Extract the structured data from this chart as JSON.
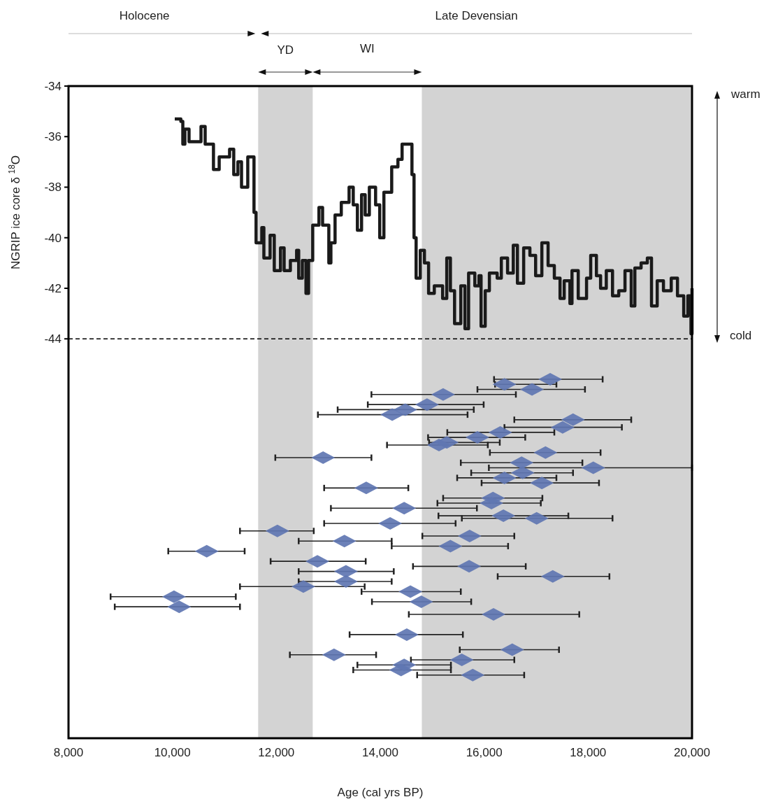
{
  "chart_data": {
    "type": "scatter",
    "xlabel": "Age (cal yrs BP)",
    "ylabel": "NGRIP ice core δ $^{18}$O",
    "annotations": [
      "Holocene",
      "Late Devensian",
      "YD",
      "WI",
      "warm",
      "cold"
    ],
    "xlim": [
      8000,
      20000
    ],
    "ylim": [
      -59.8,
      -34
    ],
    "xticks": [
      {
        "value": 8000,
        "label": "8,000"
      },
      {
        "value": 10000,
        "label": "10,000"
      },
      {
        "value": 12000,
        "label": "12,000"
      },
      {
        "value": 14000,
        "label": "14,000"
      },
      {
        "value": 16000,
        "label": "16,000"
      },
      {
        "value": 18000,
        "label": "18,000"
      },
      {
        "value": 20000,
        "label": "20,000"
      }
    ],
    "yticks": [
      -34,
      -36,
      -38,
      -40,
      -42,
      -44
    ],
    "bands": [
      {
        "axis": "x",
        "from": 11650,
        "to": 12700,
        "color": "#d3d3d3"
      },
      {
        "axis": "x",
        "from": 14800,
        "to": 20000,
        "color": "#d3d3d3"
      }
    ],
    "ref_lines": [
      {
        "axis": "y",
        "value": -44,
        "line_style": "dashed",
        "color": "#000000"
      }
    ],
    "series": [
      {
        "type": "step",
        "color": "#1a1a1a",
        "line_style": "solid",
        "x": [
          10045,
          10162,
          10200,
          10240,
          10320,
          10475,
          10550,
          10630,
          10710,
          10790,
          10900,
          11100,
          11180,
          11260,
          11330,
          11450,
          11530,
          11570,
          11610,
          11720,
          11760,
          11880,
          11960,
          12080,
          12150,
          12270,
          12390,
          12430,
          12500,
          12570,
          12620,
          12700,
          12820,
          12890,
          13010,
          13050,
          13130,
          13250,
          13400,
          13480,
          13560,
          13640,
          13710,
          13790,
          13910,
          13990,
          14070,
          14220,
          14340,
          14420,
          14530,
          14610,
          14650,
          14690,
          14770,
          14850,
          14930,
          15040,
          15200,
          15280,
          15350,
          15430,
          15550,
          15630,
          15700,
          15820,
          15900,
          15940,
          16020,
          16100,
          16250,
          16330,
          16450,
          16560,
          16640,
          16760,
          16880,
          16990,
          17110,
          17230,
          17350,
          17460,
          17540,
          17650,
          17690,
          17810,
          17970,
          18050,
          18160,
          18240,
          18350,
          18470,
          18590,
          18710,
          18830,
          18900,
          19020,
          19140,
          19220,
          19330,
          19450,
          19600,
          19720,
          19840,
          19920,
          19980,
          20000
        ],
        "values": [
          -35.3,
          -35.4,
          -36.3,
          -35.7,
          -36.2,
          -36.2,
          -35.6,
          -36.3,
          -36.3,
          -37.3,
          -36.8,
          -36.5,
          -37.5,
          -37.0,
          -38.0,
          -36.8,
          -36.8,
          -39.0,
          -40.2,
          -39.6,
          -40.8,
          -39.9,
          -41.3,
          -40.4,
          -41.3,
          -40.9,
          -40.5,
          -41.6,
          -40.9,
          -42.2,
          -40.9,
          -39.5,
          -38.8,
          -39.5,
          -41.0,
          -40.2,
          -39.1,
          -38.6,
          -38.0,
          -38.7,
          -39.7,
          -38.3,
          -39.1,
          -38.0,
          -38.7,
          -40.0,
          -38.2,
          -37.2,
          -36.9,
          -36.3,
          -36.3,
          -37.5,
          -40.0,
          -41.6,
          -40.5,
          -41.0,
          -42.2,
          -41.9,
          -42.4,
          -40.8,
          -42.1,
          -43.4,
          -41.9,
          -43.6,
          -41.4,
          -41.9,
          -41.5,
          -43.5,
          -42.1,
          -41.4,
          -41.6,
          -40.8,
          -41.4,
          -40.3,
          -41.8,
          -40.4,
          -40.7,
          -41.5,
          -40.2,
          -41.1,
          -41.6,
          -42.4,
          -41.7,
          -42.6,
          -41.3,
          -42.4,
          -41.6,
          -40.7,
          -41.5,
          -42.0,
          -41.3,
          -42.3,
          -42.1,
          -41.3,
          -42.7,
          -41.2,
          -41.0,
          -40.8,
          -42.7,
          -41.7,
          -42.1,
          -41.6,
          -42.3,
          -43.1,
          -42.3,
          -43.8,
          -42.0
        ]
      },
      {
        "color": "#6076b2",
        "marker": "diamond",
        "x": [
          17270,
          16390,
          16920,
          15210,
          14900,
          14480,
          14230,
          17710,
          17510,
          16310,
          15870,
          15280,
          15130,
          17180,
          12900,
          16720,
          18100,
          16740,
          16390,
          17110,
          13730,
          16170,
          16140,
          14460,
          16370,
          17010,
          14190,
          12020,
          15720,
          13310,
          15350,
          10660,
          12790,
          15710,
          13340,
          17320,
          13340,
          12520,
          14580,
          10030,
          14790,
          10130,
          16180,
          14510,
          16540,
          13110,
          15570,
          14460,
          14400,
          15780
        ],
        "values": [
          -45.6,
          -45.8,
          -46.0,
          -46.2,
          -46.6,
          -46.8,
          -47.0,
          -47.2,
          -47.5,
          -47.7,
          -47.9,
          -48.1,
          -48.2,
          -48.5,
          -48.7,
          -48.9,
          -49.1,
          -49.3,
          -49.5,
          -49.7,
          -49.9,
          -50.3,
          -50.5,
          -50.7,
          -51.0,
          -51.1,
          -51.3,
          -51.6,
          -51.8,
          -52.0,
          -52.2,
          -52.4,
          -52.8,
          -53.0,
          -53.2,
          -53.4,
          -53.6,
          -53.8,
          -54.0,
          -54.2,
          -54.4,
          -54.6,
          -54.9,
          -55.7,
          -56.3,
          -56.5,
          -56.7,
          -56.9,
          -57.1,
          -57.3
        ],
        "xerrors": [
          [
            16190,
            18280
          ],
          [
            16210,
            17390
          ],
          [
            15870,
            17940
          ],
          [
            13830,
            16610
          ],
          [
            13760,
            15990
          ],
          [
            13180,
            15800
          ],
          [
            12800,
            15680
          ],
          [
            16580,
            18830
          ],
          [
            16390,
            18650
          ],
          [
            15290,
            17350
          ],
          [
            14920,
            16790
          ],
          [
            14940,
            16300
          ],
          [
            14130,
            16070
          ],
          [
            16110,
            18240
          ],
          [
            11980,
            13830
          ],
          [
            15550,
            17890
          ],
          [
            16090,
            20000
          ],
          [
            15750,
            17710
          ],
          [
            15480,
            17390
          ],
          [
            15950,
            18210
          ],
          [
            12920,
            14540
          ],
          [
            15210,
            17120
          ],
          [
            15100,
            17090
          ],
          [
            13050,
            15860
          ],
          [
            15120,
            17620
          ],
          [
            15570,
            18470
          ],
          [
            12920,
            15450
          ],
          [
            11300,
            12720
          ],
          [
            14810,
            16580
          ],
          [
            12430,
            14220
          ],
          [
            14220,
            16460
          ],
          [
            9920,
            11390
          ],
          [
            11890,
            13720
          ],
          [
            14630,
            16800
          ],
          [
            12430,
            14260
          ],
          [
            16260,
            18410
          ],
          [
            12430,
            14220
          ],
          [
            11300,
            13700
          ],
          [
            13640,
            15550
          ],
          [
            8810,
            11220
          ],
          [
            13840,
            15750
          ],
          [
            8890,
            11300
          ],
          [
            14550,
            17830
          ],
          [
            13410,
            15590
          ],
          [
            15530,
            17440
          ],
          [
            12260,
            13920
          ],
          [
            14590,
            16580
          ],
          [
            13560,
            15360
          ],
          [
            13480,
            15360
          ],
          [
            14710,
            16770
          ]
        ]
      }
    ]
  }
}
